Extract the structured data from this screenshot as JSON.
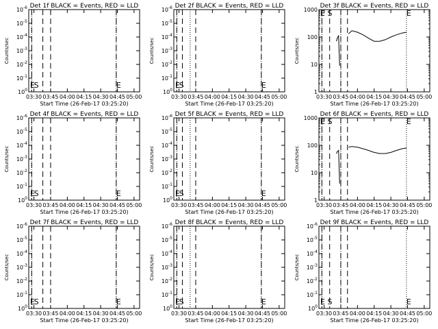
{
  "figure": {
    "background": "#ffffff",
    "foreground": "#000000",
    "series_colors": {
      "Events": "#000000",
      "LLD": "#ff0000"
    }
  },
  "chart_data": [
    {
      "type": "line",
      "panel": 1,
      "title": "Det 1f BLACK = Events, RED = LLD",
      "xlabel": "Start Time (26-Feb-17 03:25:20)",
      "ylabel": "Counts/sec",
      "x_ticks": [
        "03:30",
        "03:45",
        "04:00",
        "04:15",
        "04:30",
        "04:45",
        "05:00"
      ],
      "y_scale": "log",
      "y_ticks": [
        "10^0",
        "10^-1",
        "10^-2",
        "10^-3",
        "10^-4",
        "10^-5",
        "10^-6"
      ],
      "ylim": [
        1,
        1e-06
      ],
      "grid": false,
      "markers": {
        "S": "03:30",
        "E": "04:44"
      },
      "vlines_dashed": [
        "03:28",
        "03:38",
        "03:45",
        "04:44"
      ],
      "vlines_dotted": [
        "03:28",
        "04:44"
      ],
      "series": []
    },
    {
      "type": "line",
      "panel": 2,
      "title": "Det 2f BLACK = Events, RED = LLD",
      "xlabel": "Start Time (26-Feb-17 03:25:20)",
      "ylabel": "Counts/sec",
      "x_ticks": [
        "03:30",
        "03:45",
        "04:00",
        "04:15",
        "04:30",
        "04:45",
        "05:00"
      ],
      "y_scale": "log",
      "y_ticks": [
        "10^0",
        "10^-1",
        "10^-2",
        "10^-3",
        "10^-4",
        "10^-5",
        "10^-6"
      ],
      "ylim": [
        1,
        1e-06
      ],
      "grid": false,
      "markers": {
        "S": "03:30",
        "E": "04:44"
      },
      "vlines_dashed": [
        "03:28",
        "03:33",
        "03:45",
        "04:44"
      ],
      "vlines_dotted": [
        "03:28",
        "03:40",
        "04:44"
      ],
      "series": []
    },
    {
      "type": "line",
      "panel": 3,
      "title": "Det 3f BLACK = Events, RED = LLD",
      "xlabel": "Start Time (26-Feb-17 03:25:20)",
      "ylabel": "Counts/sec",
      "x_ticks": [
        "03:30",
        "03:45",
        "04:00",
        "04:15",
        "04:30",
        "04:45",
        "05:00"
      ],
      "y_scale": "log",
      "y_ticks": [
        "1000",
        "100",
        "10",
        "1"
      ],
      "ylim": [
        1,
        1000
      ],
      "grid": false,
      "markers": {
        "S": "03:33",
        "E": "04:44"
      },
      "vlines_dashed": [
        "03:28",
        "03:35",
        "03:45",
        "03:51"
      ],
      "vlines_dotted": [
        "03:28",
        "03:45",
        "04:44"
      ],
      "series": [
        {
          "name": "Events",
          "color": "#000000",
          "segments": [
            {
              "x": [
                "03:41",
                "03:42",
                "03:43",
                "03:44"
              ],
              "y": [
                70,
                95,
                110,
                9
              ]
            },
            {
              "x": [
                "03:52",
                "03:55",
                "04:00",
                "04:05",
                "04:10",
                "04:15",
                "04:20",
                "04:25",
                "04:30",
                "04:35",
                "04:40",
                "04:44"
              ],
              "y": [
                130,
                170,
                150,
                120,
                90,
                70,
                70,
                80,
                100,
                120,
                140,
                150
              ]
            }
          ]
        }
      ]
    },
    {
      "type": "line",
      "panel": 4,
      "title": "Det 4f BLACK = Events, RED = LLD",
      "xlabel": "Start Time (26-Feb-17 03:25:20)",
      "ylabel": "Counts/sec",
      "x_ticks": [
        "03:30",
        "03:45",
        "04:00",
        "04:15",
        "04:30",
        "04:45",
        "05:00"
      ],
      "y_scale": "log",
      "y_ticks": [
        "10^0",
        "10^-1",
        "10^-2",
        "10^-3",
        "10^-4",
        "10^-5",
        "10^-6"
      ],
      "ylim": [
        1,
        1e-06
      ],
      "grid": false,
      "markers": {
        "S": "03:30",
        "E": "04:44"
      },
      "vlines_dashed": [
        "03:28",
        "03:38",
        "03:45",
        "04:44"
      ],
      "vlines_dotted": [
        "03:28",
        "04:44"
      ],
      "series": []
    },
    {
      "type": "line",
      "panel": 5,
      "title": "Det 5f BLACK = Events, RED = LLD",
      "xlabel": "Start Time (26-Feb-17 03:25:20)",
      "ylabel": "Counts/sec",
      "x_ticks": [
        "03:30",
        "03:45",
        "04:00",
        "04:15",
        "04:30",
        "04:45",
        "05:00"
      ],
      "y_scale": "log",
      "y_ticks": [
        "10^0",
        "10^-1",
        "10^-2",
        "10^-3",
        "10^-4",
        "10^-5",
        "10^-6"
      ],
      "ylim": [
        1,
        1e-06
      ],
      "grid": false,
      "markers": {
        "S": "03:30",
        "E": "04:44"
      },
      "vlines_dashed": [
        "03:28",
        "03:33",
        "03:45",
        "04:44"
      ],
      "vlines_dotted": [
        "03:28",
        "03:40",
        "04:44"
      ],
      "series": []
    },
    {
      "type": "line",
      "panel": 6,
      "title": "Det 6f BLACK = Events, RED = LLD",
      "xlabel": "Start Time (26-Feb-17 03:25:20)",
      "ylabel": "Counts/sec",
      "x_ticks": [
        "03:30",
        "03:45",
        "04:00",
        "04:15",
        "04:30",
        "04:45",
        "05:00"
      ],
      "y_scale": "log",
      "y_ticks": [
        "1000",
        "100",
        "10",
        "1"
      ],
      "ylim": [
        1,
        1000
      ],
      "grid": false,
      "markers": {
        "S": "03:33",
        "E": "04:44"
      },
      "vlines_dashed": [
        "03:28",
        "03:35",
        "03:45",
        "03:51"
      ],
      "vlines_dotted": [
        "03:28",
        "03:45",
        "04:44"
      ],
      "series": [
        {
          "name": "Events",
          "color": "#000000",
          "segments": [
            {
              "x": [
                "03:41",
                "03:42",
                "03:43",
                "03:44"
              ],
              "y": [
                50,
                60,
                65,
                4
              ]
            },
            {
              "x": [
                "03:52",
                "03:55",
                "04:00",
                "04:05",
                "04:10",
                "04:15",
                "04:20",
                "04:25",
                "04:30",
                "04:35",
                "04:40",
                "04:44"
              ],
              "y": [
                85,
                90,
                85,
                75,
                65,
                55,
                50,
                50,
                55,
                65,
                75,
                80
              ]
            }
          ]
        }
      ]
    },
    {
      "type": "line",
      "panel": 7,
      "title": "Det 7f BLACK = Events, RED = LLD",
      "xlabel": "Start Time (26-Feb-17 03:25:20)",
      "ylabel": "Counts/sec",
      "x_ticks": [
        "03:30",
        "03:45",
        "04:00",
        "04:15",
        "04:30",
        "04:45",
        "05:00"
      ],
      "y_scale": "log",
      "y_ticks": [
        "10^0",
        "10^-1",
        "10^-2",
        "10^-3",
        "10^-4",
        "10^-5",
        "10^-6"
      ],
      "ylim": [
        1,
        1e-06
      ],
      "grid": false,
      "markers": {
        "S": "03:30",
        "E": "04:44"
      },
      "vlines_dashed": [
        "03:28",
        "03:38",
        "03:45",
        "04:44"
      ],
      "vlines_dotted": [
        "03:28",
        "04:44"
      ],
      "series": []
    },
    {
      "type": "line",
      "panel": 8,
      "title": "Det 8f BLACK = Events, RED = LLD",
      "xlabel": "Start Time (26-Feb-17 03:25:20)",
      "ylabel": "Counts/sec",
      "x_ticks": [
        "03:30",
        "03:45",
        "04:00",
        "04:15",
        "04:30",
        "04:45",
        "05:00"
      ],
      "y_scale": "log",
      "y_ticks": [
        "10^0",
        "10^-1",
        "10^-2",
        "10^-3",
        "10^-4",
        "10^-5",
        "10^-6"
      ],
      "ylim": [
        1,
        1e-06
      ],
      "grid": false,
      "markers": {
        "S": "03:30",
        "E": "04:44"
      },
      "vlines_dashed": [
        "03:28",
        "03:33",
        "03:45",
        "04:44"
      ],
      "vlines_dotted": [
        "03:28",
        "03:40",
        "04:44"
      ],
      "series": []
    },
    {
      "type": "line",
      "panel": 9,
      "title": "Det 9f BLACK = Events, RED = LLD",
      "xlabel": "Start Time (26-Feb-17 03:25:20)",
      "ylabel": "Counts/sec",
      "x_ticks": [
        "03:30",
        "03:45",
        "04:00",
        "04:15",
        "04:30",
        "04:45",
        "05:00"
      ],
      "y_scale": "log",
      "y_ticks": [
        "10^0",
        "10^-1",
        "10^-2",
        "10^-3",
        "10^-4",
        "10^-5",
        "10^-6"
      ],
      "ylim": [
        1,
        1e-06
      ],
      "grid": false,
      "markers": {
        "S": "03:33",
        "E": "04:44"
      },
      "vlines_dashed": [
        "03:28",
        "03:35",
        "03:45",
        "03:51"
      ],
      "vlines_dotted": [
        "03:28",
        "03:45",
        "04:44"
      ],
      "series": []
    }
  ]
}
